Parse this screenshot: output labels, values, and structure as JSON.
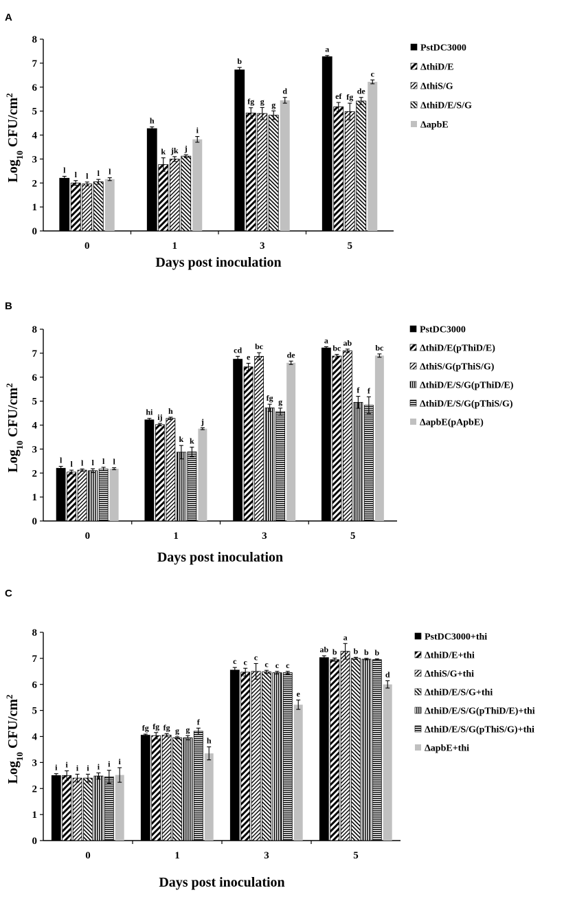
{
  "chart_data": [
    {
      "panel": "A",
      "type": "bar",
      "xlabel": "Days post inoculation",
      "ylabel_base": "Log",
      "ylabel_sub": "10",
      "ylabel_rest": " CFU/cm",
      "ylabel_sup": "2",
      "ylim": [
        0,
        8
      ],
      "yticks": [
        "0",
        "1",
        "2",
        "3",
        "4",
        "5",
        "6",
        "7",
        "8"
      ],
      "categories": [
        "0",
        "1",
        "3",
        "5"
      ],
      "series": [
        {
          "name": "PstDC3000",
          "pattern": "solid",
          "values": [
            2.2,
            4.27,
            6.72,
            7.27
          ],
          "errors": [
            0.08,
            0.07,
            0.1,
            0.05
          ],
          "letters": [
            "l",
            "h",
            "b",
            "a"
          ]
        },
        {
          "name": "ΔthiD/E",
          "pattern": "diag-wide",
          "values": [
            2.0,
            2.77,
            4.92,
            5.18
          ],
          "errors": [
            0.1,
            0.28,
            0.22,
            0.18
          ],
          "letters": [
            "l",
            "k",
            "fg",
            "ef"
          ]
        },
        {
          "name": "ΔthiS/G",
          "pattern": "diag-thin",
          "values": [
            1.96,
            3.0,
            4.9,
            4.98
          ],
          "errors": [
            0.08,
            0.1,
            0.25,
            0.35
          ],
          "letters": [
            "l",
            "jk",
            "g",
            "fg"
          ]
        },
        {
          "name": "ΔthiD/E/S/G",
          "pattern": "diag-back",
          "values": [
            2.05,
            3.12,
            4.83,
            5.42
          ],
          "errors": [
            0.1,
            0.06,
            0.18,
            0.15
          ],
          "letters": [
            "l",
            "j",
            "g",
            "de"
          ]
        },
        {
          "name": "ΔapbE",
          "pattern": "gray",
          "values": [
            2.16,
            3.82,
            5.45,
            6.22
          ],
          "errors": [
            0.06,
            0.12,
            0.12,
            0.08
          ],
          "letters": [
            "l",
            "i",
            "d",
            "c"
          ]
        }
      ]
    },
    {
      "panel": "B",
      "type": "bar",
      "xlabel": "Days post inoculation",
      "ylabel_base": "Log",
      "ylabel_sub": "10",
      "ylabel_rest": " CFU/cm",
      "ylabel_sup": "2",
      "ylim": [
        0,
        8
      ],
      "yticks": [
        "0",
        "1",
        "2",
        "3",
        "4",
        "5",
        "6",
        "7",
        "8"
      ],
      "categories": [
        "0",
        "1",
        "3",
        "5"
      ],
      "series": [
        {
          "name": "PstDC3000",
          "pattern": "solid",
          "values": [
            2.2,
            4.22,
            6.75,
            7.22
          ],
          "errors": [
            0.08,
            0.06,
            0.12,
            0.05
          ],
          "letters": [
            "l",
            "hi",
            "cd",
            "a"
          ]
        },
        {
          "name": "ΔthiD/E(pThiD/E)",
          "pattern": "diag-wide",
          "values": [
            2.04,
            4.02,
            6.43,
            6.88
          ],
          "errors": [
            0.08,
            0.05,
            0.15,
            0.07
          ],
          "letters": [
            "l",
            "ij",
            "e",
            "bc"
          ]
        },
        {
          "name": "ΔthiS/G(pThiS/G)",
          "pattern": "diag-thin",
          "values": [
            2.12,
            4.28,
            6.87,
            7.1
          ],
          "errors": [
            0.05,
            0.05,
            0.15,
            0.07
          ],
          "letters": [
            "l",
            "h",
            "bc",
            "ab"
          ]
        },
        {
          "name": "ΔthiD/E/S/G(pThiD/E)",
          "pattern": "vert",
          "values": [
            2.1,
            2.87,
            4.72,
            4.95
          ],
          "errors": [
            0.08,
            0.28,
            0.15,
            0.25
          ],
          "letters": [
            "l",
            "k",
            "fg",
            "f"
          ]
        },
        {
          "name": "ΔthiD/E/S/G(pThiS/G)",
          "pattern": "horiz",
          "values": [
            2.17,
            2.88,
            4.56,
            4.83
          ],
          "errors": [
            0.07,
            0.2,
            0.15,
            0.35
          ],
          "letters": [
            "l",
            "k",
            "g",
            "f"
          ]
        },
        {
          "name": "ΔapbE(pApbE)",
          "pattern": "gray",
          "values": [
            2.18,
            3.85,
            6.6,
            6.9
          ],
          "errors": [
            0.04,
            0.04,
            0.07,
            0.07
          ],
          "letters": [
            "l",
            "j",
            "de",
            "bc"
          ]
        }
      ]
    },
    {
      "panel": "C",
      "type": "bar",
      "xlabel": "Days post inoculation",
      "ylabel_base": "Log",
      "ylabel_sub": "10",
      "ylabel_rest": " CFU/cm",
      "ylabel_sup": "2",
      "ylim": [
        0,
        8
      ],
      "yticks": [
        "0",
        "1",
        "2",
        "3",
        "4",
        "5",
        "6",
        "7",
        "8"
      ],
      "categories": [
        "0",
        "1",
        "3",
        "5"
      ],
      "series": [
        {
          "name": "PstDC3000+thi",
          "pattern": "solid",
          "values": [
            2.5,
            4.05,
            6.55,
            7.03
          ],
          "errors": [
            0.07,
            0.04,
            0.1,
            0.07
          ],
          "letters": [
            "i",
            "fg",
            "c",
            "ab"
          ]
        },
        {
          "name": "ΔthiD/E+thi",
          "pattern": "diag-wide",
          "values": [
            2.5,
            4.03,
            6.47,
            6.95
          ],
          "errors": [
            0.18,
            0.12,
            0.15,
            0.06
          ],
          "letters": [
            "i",
            "fg",
            "c",
            "b"
          ]
        },
        {
          "name": "ΔthiS/G+thi",
          "pattern": "diag-thin",
          "values": [
            2.4,
            4.05,
            6.5,
            7.27
          ],
          "errors": [
            0.15,
            0.06,
            0.3,
            0.3
          ],
          "letters": [
            "i",
            "fg",
            "c",
            "a"
          ]
        },
        {
          "name": "ΔthiD/E/S/G+thi",
          "pattern": "diag-back",
          "values": [
            2.4,
            3.95,
            6.48,
            7.0
          ],
          "errors": [
            0.15,
            0.04,
            0.06,
            0.04
          ],
          "letters": [
            "i",
            "g",
            "c",
            "b"
          ]
        },
        {
          "name": "ΔthiD/E/S/G(pThiD/E)+thi",
          "pattern": "vert",
          "values": [
            2.48,
            3.95,
            6.45,
            6.97
          ],
          "errors": [
            0.12,
            0.08,
            0.05,
            0.03
          ],
          "letters": [
            "i",
            "g",
            "c",
            "b"
          ]
        },
        {
          "name": "ΔthiD/E/S/G(pThiS/G)+thi",
          "pattern": "horiz",
          "values": [
            2.45,
            4.2,
            6.45,
            6.95
          ],
          "errors": [
            0.25,
            0.12,
            0.05,
            0.03
          ],
          "letters": [
            "i",
            "f",
            "c",
            "b"
          ]
        },
        {
          "name": "ΔapbE+thi",
          "pattern": "gray",
          "values": [
            2.52,
            3.35,
            5.22,
            6.0
          ],
          "errors": [
            0.28,
            0.25,
            0.18,
            0.14
          ],
          "letters": [
            "i",
            "h",
            "e",
            "d"
          ]
        }
      ]
    }
  ]
}
